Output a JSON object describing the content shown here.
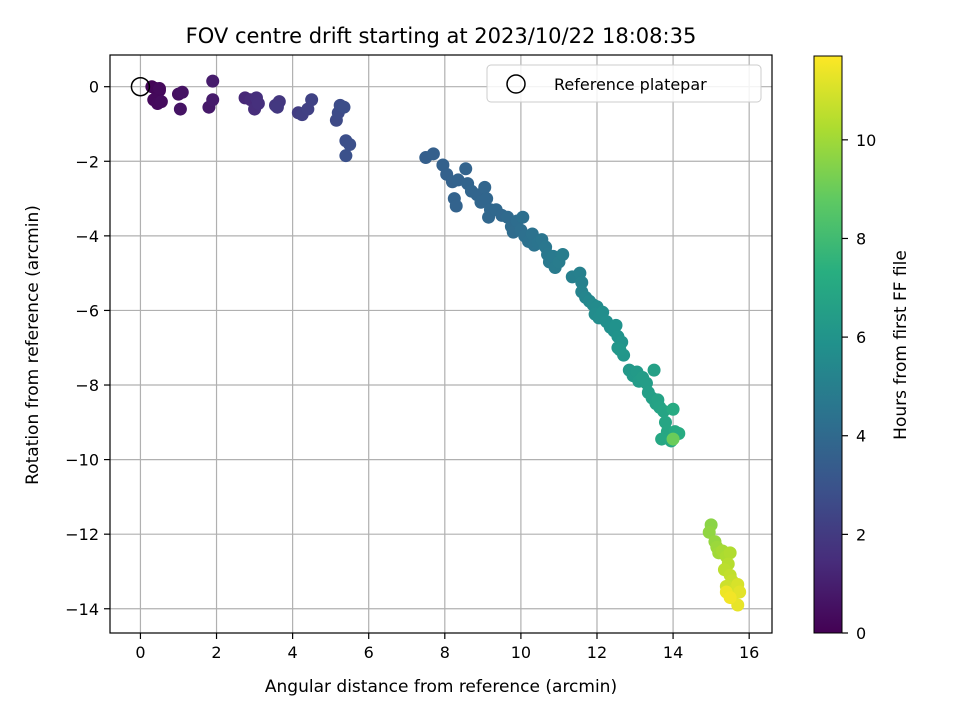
{
  "chart_data": {
    "type": "scatter",
    "title": "FOV centre drift starting at 2023/10/22 18:08:35",
    "xlabel": "Angular distance from reference (arcmin)",
    "ylabel": "Rotation from reference (arcmin)",
    "xlim": [
      -0.8,
      16.6
    ],
    "ylim": [
      -14.65,
      0.85
    ],
    "xticks": [
      0,
      2,
      4,
      6,
      8,
      10,
      12,
      14,
      16
    ],
    "xtick_labels": [
      "0",
      "2",
      "4",
      "6",
      "8",
      "10",
      "12",
      "14",
      "16"
    ],
    "yticks": [
      0,
      -2,
      -4,
      -6,
      -8,
      -10,
      -12,
      -14
    ],
    "ytick_labels": [
      "0",
      "−2",
      "−4",
      "−6",
      "−8",
      "−10",
      "−12",
      "−14"
    ],
    "grid": true,
    "legend": {
      "position": "top-right",
      "entries": [
        "Reference platepar"
      ]
    },
    "reference_point": {
      "x": 0,
      "y": 0
    },
    "colorbar": {
      "label": "Hours from first FF file",
      "colormap": "viridis",
      "range": [
        0,
        11.7
      ],
      "ticks": [
        0,
        2,
        4,
        6,
        8,
        10
      ],
      "tick_labels": [
        "0",
        "2",
        "4",
        "6",
        "8",
        "10"
      ]
    },
    "series": [
      {
        "columns": [
          "x",
          "y",
          "hours"
        ],
        "points": [
          [
            0.3,
            0.0,
            0.1
          ],
          [
            0.4,
            -0.05,
            0.15
          ],
          [
            0.5,
            -0.1,
            0.2
          ],
          [
            0.35,
            -0.35,
            0.25
          ],
          [
            0.45,
            -0.45,
            0.3
          ],
          [
            0.55,
            -0.4,
            0.35
          ],
          [
            0.5,
            -0.05,
            0.3
          ],
          [
            1.0,
            -0.2,
            0.5
          ],
          [
            1.1,
            -0.15,
            0.55
          ],
          [
            1.05,
            -0.6,
            0.6
          ],
          [
            1.8,
            -0.55,
            0.8
          ],
          [
            1.9,
            -0.35,
            0.85
          ],
          [
            1.9,
            0.15,
            0.9
          ],
          [
            2.75,
            -0.3,
            1.3
          ],
          [
            2.9,
            -0.35,
            1.4
          ],
          [
            3.0,
            -0.6,
            1.5
          ],
          [
            3.05,
            -0.3,
            1.55
          ],
          [
            3.1,
            -0.45,
            1.6
          ],
          [
            3.55,
            -0.5,
            1.8
          ],
          [
            3.65,
            -0.4,
            1.85
          ],
          [
            3.6,
            -0.55,
            1.9
          ],
          [
            4.15,
            -0.7,
            2.1
          ],
          [
            4.25,
            -0.75,
            2.2
          ],
          [
            4.4,
            -0.6,
            2.25
          ],
          [
            4.5,
            -0.35,
            2.3
          ],
          [
            5.15,
            -0.9,
            2.6
          ],
          [
            5.2,
            -0.7,
            2.65
          ],
          [
            5.25,
            -0.5,
            2.7
          ],
          [
            5.35,
            -0.55,
            2.75
          ],
          [
            5.4,
            -1.45,
            2.8
          ],
          [
            5.5,
            -1.55,
            2.85
          ],
          [
            5.4,
            -1.85,
            2.9
          ],
          [
            7.5,
            -1.9,
            3.5
          ],
          [
            7.7,
            -1.8,
            3.55
          ],
          [
            7.95,
            -2.1,
            3.6
          ],
          [
            8.05,
            -2.35,
            3.62
          ],
          [
            8.2,
            -2.55,
            3.65
          ],
          [
            8.35,
            -2.5,
            3.68
          ],
          [
            8.25,
            -3.0,
            3.7
          ],
          [
            8.3,
            -3.2,
            3.72
          ],
          [
            8.55,
            -2.2,
            3.74
          ],
          [
            8.6,
            -2.6,
            3.76
          ],
          [
            8.7,
            -2.8,
            3.78
          ],
          [
            8.85,
            -2.9,
            3.8
          ],
          [
            8.95,
            -3.1,
            3.82
          ],
          [
            9.05,
            -2.7,
            3.84
          ],
          [
            9.1,
            -3.0,
            3.86
          ],
          [
            9.2,
            -3.3,
            3.88
          ],
          [
            9.15,
            -3.5,
            3.9
          ],
          [
            9.35,
            -3.3,
            3.92
          ],
          [
            9.5,
            -3.45,
            3.94
          ],
          [
            9.65,
            -3.5,
            4.0
          ],
          [
            9.75,
            -3.75,
            4.05
          ],
          [
            9.8,
            -3.9,
            4.1
          ],
          [
            9.9,
            -3.6,
            4.15
          ],
          [
            10.0,
            -3.85,
            4.2
          ],
          [
            10.05,
            -3.5,
            4.25
          ],
          [
            10.1,
            -4.0,
            4.3
          ],
          [
            10.2,
            -4.15,
            4.35
          ],
          [
            10.3,
            -3.95,
            4.4
          ],
          [
            10.35,
            -4.25,
            4.45
          ],
          [
            10.45,
            -4.2,
            4.5
          ],
          [
            10.55,
            -4.1,
            4.55
          ],
          [
            10.65,
            -4.3,
            4.6
          ],
          [
            10.7,
            -4.5,
            4.65
          ],
          [
            10.75,
            -4.7,
            4.7
          ],
          [
            10.85,
            -4.55,
            4.75
          ],
          [
            10.9,
            -4.85,
            4.8
          ],
          [
            11.0,
            -4.7,
            4.85
          ],
          [
            11.1,
            -4.5,
            4.9
          ],
          [
            11.35,
            -5.1,
            5.0
          ],
          [
            11.55,
            -5.0,
            5.05
          ],
          [
            11.6,
            -5.25,
            5.1
          ],
          [
            11.6,
            -5.5,
            5.2
          ],
          [
            11.7,
            -5.65,
            5.3
          ],
          [
            11.8,
            -5.75,
            5.4
          ],
          [
            11.9,
            -5.85,
            5.5
          ],
          [
            12.0,
            -5.9,
            5.55
          ],
          [
            11.95,
            -6.1,
            5.6
          ],
          [
            12.05,
            -6.2,
            5.65
          ],
          [
            12.15,
            -6.05,
            5.7
          ],
          [
            12.25,
            -6.3,
            5.75
          ],
          [
            12.35,
            -6.45,
            5.8
          ],
          [
            12.45,
            -6.55,
            5.85
          ],
          [
            12.5,
            -6.4,
            5.9
          ],
          [
            12.55,
            -6.7,
            5.95
          ],
          [
            12.65,
            -6.85,
            6.0
          ],
          [
            12.55,
            -7.0,
            6.05
          ],
          [
            12.7,
            -7.2,
            6.1
          ],
          [
            12.6,
            -7.05,
            6.15
          ],
          [
            12.85,
            -7.6,
            6.2
          ],
          [
            12.95,
            -7.75,
            6.25
          ],
          [
            13.05,
            -7.65,
            6.3
          ],
          [
            13.1,
            -7.9,
            6.35
          ],
          [
            13.2,
            -7.8,
            6.4
          ],
          [
            13.3,
            -7.95,
            6.45
          ],
          [
            13.35,
            -8.2,
            6.5
          ],
          [
            13.45,
            -8.35,
            6.55
          ],
          [
            13.5,
            -7.6,
            6.6
          ],
          [
            13.55,
            -8.5,
            6.65
          ],
          [
            13.6,
            -8.4,
            6.7
          ],
          [
            13.65,
            -8.6,
            6.75
          ],
          [
            13.75,
            -8.7,
            6.8
          ],
          [
            13.8,
            -9.0,
            6.85
          ],
          [
            13.85,
            -9.25,
            6.9
          ],
          [
            13.7,
            -9.45,
            6.95
          ],
          [
            13.95,
            -9.5,
            7.0
          ],
          [
            14.05,
            -9.25,
            7.05
          ],
          [
            14.0,
            -8.65,
            7.1
          ],
          [
            14.15,
            -9.3,
            7.15
          ],
          [
            14.0,
            -9.45,
            9.0
          ],
          [
            15.0,
            -11.75,
            9.6
          ],
          [
            14.95,
            -11.95,
            9.7
          ],
          [
            15.1,
            -12.2,
            9.8
          ],
          [
            15.15,
            -12.35,
            9.9
          ],
          [
            15.2,
            -12.5,
            10.0
          ],
          [
            15.3,
            -12.45,
            10.1
          ],
          [
            15.4,
            -12.6,
            10.2
          ],
          [
            15.5,
            -12.5,
            10.3
          ],
          [
            15.45,
            -12.8,
            10.4
          ],
          [
            15.35,
            -12.95,
            10.5
          ],
          [
            15.5,
            -13.1,
            10.6
          ],
          [
            15.55,
            -13.25,
            10.7
          ],
          [
            15.4,
            -13.4,
            10.8
          ],
          [
            15.6,
            -13.5,
            10.9
          ],
          [
            15.7,
            -13.35,
            11.0
          ],
          [
            15.55,
            -13.7,
            11.1
          ],
          [
            15.75,
            -13.55,
            11.2
          ],
          [
            15.7,
            -13.9,
            11.3
          ],
          [
            15.4,
            -13.55,
            11.4
          ],
          [
            15.5,
            -13.7,
            11.5
          ]
        ]
      }
    ]
  }
}
